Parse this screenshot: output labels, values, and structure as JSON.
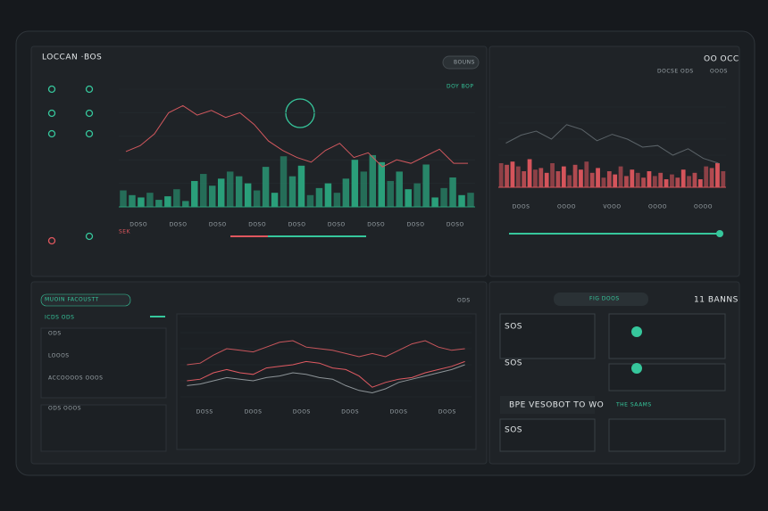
{
  "header": {
    "title": "LOCCAN ·BOS",
    "button": "BOUNS",
    "tag": "DOY BOP",
    "side_title": "OO OCC",
    "side_tabs": [
      "DOCSE ODS",
      "OOOS"
    ]
  },
  "main_chart": {
    "type": "bar",
    "color": "#2a9f7a",
    "line_color": "#d2585e",
    "ylim": [
      0,
      100
    ],
    "values": [
      14,
      10,
      8,
      12,
      6,
      9,
      15,
      5,
      22,
      28,
      18,
      24,
      30,
      26,
      20,
      14,
      34,
      12,
      43,
      26,
      35,
      10,
      16,
      20,
      12,
      24,
      40,
      30,
      44,
      38,
      22,
      30,
      15,
      20,
      36,
      8,
      16,
      25,
      10,
      12
    ],
    "line": [
      47,
      52,
      62,
      80,
      86,
      78,
      82,
      76,
      80,
      70,
      56,
      48,
      42,
      38,
      48,
      54,
      42,
      46,
      34,
      40,
      37,
      43,
      49,
      37,
      37
    ],
    "xlabels": [
      "DOSO",
      "DOSO",
      "DOSO",
      "DOSO",
      "DOSO",
      "DOSO",
      "DOSO",
      "DOSO",
      "DOSO"
    ],
    "legend": "SEK"
  },
  "side_chart": {
    "type": "bar",
    "color": "#d5545b",
    "line_color": "#5b6368",
    "ylim": [
      0,
      100
    ],
    "values": [
      30,
      28,
      32,
      26,
      20,
      35,
      22,
      24,
      18,
      30,
      20,
      26,
      15,
      28,
      22,
      32,
      18,
      24,
      12,
      20,
      16,
      26,
      14,
      22,
      18,
      12,
      20,
      14,
      18,
      10,
      16,
      12,
      22,
      14,
      18,
      10,
      26,
      24,
      30,
      20
    ],
    "line": [
      55,
      65,
      70,
      60,
      78,
      72,
      58,
      66,
      60,
      50,
      52,
      40,
      48,
      36,
      30
    ],
    "xlabels": [
      "DOOS",
      "OOOO",
      "VOOO",
      "OOOO",
      "OOOO"
    ]
  },
  "trend_chart": {
    "type": "line",
    "ylim": [
      0,
      100
    ],
    "series": [
      {
        "color": "#c9565c",
        "values": [
          40,
          42,
          52,
          60,
          58,
          56,
          62,
          68,
          70,
          62,
          60,
          58,
          54,
          50,
          54,
          50,
          58,
          66,
          70,
          62,
          58,
          60
        ]
      },
      {
        "color": "#e05a62",
        "values": [
          20,
          22,
          30,
          34,
          30,
          28,
          36,
          38,
          40,
          44,
          42,
          36,
          34,
          26,
          12,
          18,
          22,
          24,
          30,
          34,
          38,
          44
        ]
      },
      {
        "color": "#8d9498",
        "values": [
          14,
          16,
          20,
          24,
          22,
          20,
          24,
          26,
          30,
          28,
          24,
          22,
          14,
          8,
          5,
          10,
          18,
          22,
          26,
          30,
          34,
          40
        ]
      }
    ],
    "xlabels": [
      "DOSS",
      "DOOS",
      "DOOS",
      "DOOS",
      "DOOS",
      "DOOS"
    ]
  },
  "bottom_left": {
    "title": "MUOIN FACOUSTT",
    "sub": "ICDS ODS",
    "items": [
      "ODS",
      "LOOOS",
      "ACCOOOOS OOOS"
    ],
    "footer": "ODS OOOS",
    "tag": "ODS"
  },
  "bottom_right": {
    "badge": "FIG DOOS",
    "title": "11 BANNS",
    "row1": "SOS",
    "row2": "SOS",
    "box_title": "BPE VESOBOT TO WO",
    "box_side": "THE SAAMS",
    "row3": "SOS"
  }
}
